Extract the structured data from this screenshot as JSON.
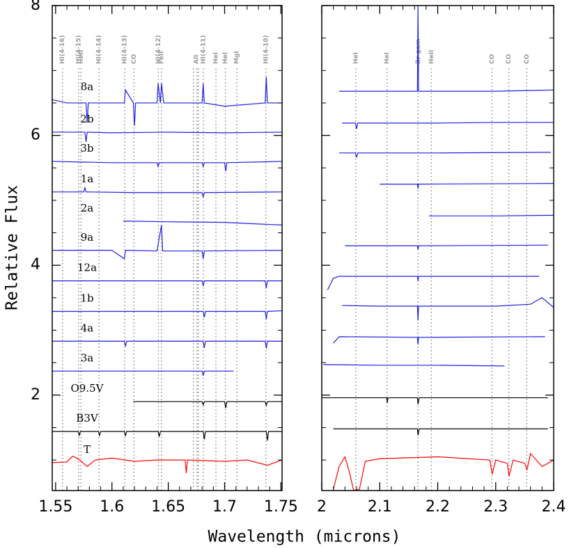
{
  "chart_data": [
    {
      "type": "line",
      "xlabel": "Wavelength (microns)",
      "ylabel": "Relative Flux",
      "xlim": [
        1.547,
        1.751
      ],
      "ylim": [
        0.53,
        8
      ],
      "xticks": [
        1.55,
        1.6,
        1.65,
        1.7,
        1.75
      ],
      "xminorticks": [
        1.56,
        1.57,
        1.58,
        1.59,
        1.61,
        1.62,
        1.63,
        1.64,
        1.66,
        1.67,
        1.68,
        1.69,
        1.71,
        1.72,
        1.73,
        1.74
      ],
      "yticks": [
        2,
        4,
        6,
        8
      ],
      "ytick_labels": true,
      "yminorticks": [
        1,
        1.5,
        2.5,
        3,
        3.5,
        4.5,
        5,
        5.5,
        6.5,
        7,
        7.5
      ],
      "annotations": [
        {
          "label": "HI(4-16)",
          "x": [
            1.5561
          ]
        },
        {
          "label": "HI(4-15)",
          "x": [
            1.5705
          ]
        },
        {
          "label": "HeII",
          "x": [
            1.5725
          ]
        },
        {
          "label": "HI(4-14)",
          "x": [
            1.5885
          ]
        },
        {
          "label": "HI(4-13)",
          "x": [
            1.6114
          ]
        },
        {
          "label": "CO",
          "x": [
            1.6195
          ]
        },
        {
          "label": "HI(4-12)",
          "x": [
            1.6412
          ]
        },
        {
          "label": "FeII",
          "x": [
            1.644
          ]
        },
        {
          "label": "AlI",
          "x": [
            1.6723,
            1.6755,
            1.6768
          ]
        },
        {
          "label": "HI(4-11)",
          "x": [
            1.6811
          ]
        },
        {
          "label": "HeI",
          "x": [
            1.6923
          ]
        },
        {
          "label": "HeI",
          "x": [
            1.7007
          ]
        },
        {
          "label": "MgI",
          "x": [
            1.7109
          ]
        },
        {
          "label": "HI(4-10)",
          "x": [
            1.7367
          ]
        }
      ],
      "series": [
        {
          "name": "8a",
          "color": "#1f1fe6",
          "x": [
            1.547,
            1.56,
            1.577,
            1.578,
            1.579,
            1.6,
            1.611,
            1.612,
            1.619,
            1.62,
            1.621,
            1.64,
            1.641,
            1.643,
            1.644,
            1.646,
            1.68,
            1.681,
            1.682,
            1.7,
            1.736,
            1.737,
            1.738,
            1.751
          ],
          "values": [
            6.55,
            6.5,
            6.5,
            6.2,
            6.5,
            6.5,
            6.5,
            6.7,
            6.5,
            6.15,
            6.5,
            6.5,
            6.8,
            6.5,
            6.8,
            6.5,
            6.5,
            6.8,
            6.5,
            6.45,
            6.5,
            6.9,
            6.5,
            6.5
          ]
        },
        {
          "name": "2b",
          "color": "#1f1fe6",
          "x": [
            1.547,
            1.576,
            1.577,
            1.578,
            1.6,
            1.65,
            1.7,
            1.751
          ],
          "values": [
            6.05,
            6.05,
            5.9,
            6.05,
            6.04,
            6.05,
            6.04,
            6.05
          ]
        },
        {
          "name": "3b",
          "color": "#1f1fe6",
          "x": [
            1.547,
            1.6,
            1.64,
            1.641,
            1.642,
            1.68,
            1.681,
            1.682,
            1.7,
            1.701,
            1.702,
            1.751
          ],
          "values": [
            5.6,
            5.58,
            5.58,
            5.52,
            5.58,
            5.58,
            5.52,
            5.58,
            5.58,
            5.45,
            5.58,
            5.6
          ]
        },
        {
          "name": "1a",
          "color": "#1f1fe6",
          "x": [
            1.547,
            1.575,
            1.576,
            1.577,
            1.62,
            1.68,
            1.681,
            1.682,
            1.751
          ],
          "values": [
            5.13,
            5.13,
            5.2,
            5.13,
            5.12,
            5.12,
            5.05,
            5.12,
            5.13
          ]
        },
        {
          "name": "2a",
          "color": "#1f1fe6",
          "x": [
            1.61,
            1.65,
            1.7,
            1.751
          ],
          "values": [
            4.68,
            4.67,
            4.66,
            4.62
          ]
        },
        {
          "name": "9a",
          "color": "#1f1fe6",
          "x": [
            1.547,
            1.6,
            1.611,
            1.612,
            1.64,
            1.644,
            1.645,
            1.646,
            1.68,
            1.681,
            1.682,
            1.751
          ],
          "values": [
            4.23,
            4.23,
            4.1,
            4.23,
            4.22,
            4.62,
            4.22,
            4.22,
            4.22,
            4.1,
            4.22,
            4.23
          ]
        },
        {
          "name": "12a",
          "color": "#1f1fe6",
          "x": [
            1.547,
            1.6,
            1.68,
            1.681,
            1.682,
            1.736,
            1.737,
            1.738,
            1.751
          ],
          "values": [
            3.76,
            3.76,
            3.76,
            3.68,
            3.76,
            3.76,
            3.65,
            3.76,
            3.76
          ]
        },
        {
          "name": "1b",
          "color": "#1f1fe6",
          "x": [
            1.547,
            1.6,
            1.681,
            1.682,
            1.683,
            1.736,
            1.737,
            1.738,
            1.751
          ],
          "values": [
            3.29,
            3.29,
            3.29,
            3.2,
            3.29,
            3.29,
            3.17,
            3.29,
            3.3
          ]
        },
        {
          "name": "4a",
          "color": "#1f1fe6",
          "x": [
            1.547,
            1.6,
            1.611,
            1.612,
            1.613,
            1.681,
            1.682,
            1.683,
            1.736,
            1.737,
            1.738,
            1.751
          ],
          "values": [
            2.83,
            2.83,
            2.83,
            2.75,
            2.83,
            2.83,
            2.73,
            2.83,
            2.83,
            2.72,
            2.83,
            2.83
          ]
        },
        {
          "name": "3a",
          "color": "#1f1fe6",
          "x": [
            1.547,
            1.6,
            1.68,
            1.681,
            1.682,
            1.708
          ],
          "values": [
            2.37,
            2.37,
            2.37,
            2.3,
            2.37,
            2.37
          ]
        },
        {
          "name": "O9.5V",
          "color": "#000000",
          "x": [
            1.619,
            1.68,
            1.681,
            1.682,
            1.7,
            1.701,
            1.702,
            1.736,
            1.737,
            1.738,
            1.751
          ],
          "values": [
            1.9,
            1.9,
            1.85,
            1.9,
            1.9,
            1.8,
            1.9,
            1.9,
            1.84,
            1.9,
            1.9
          ]
        },
        {
          "name": "B3V",
          "color": "#000000",
          "x": [
            1.547,
            1.57,
            1.571,
            1.572,
            1.588,
            1.589,
            1.59,
            1.611,
            1.612,
            1.613,
            1.641,
            1.642,
            1.643,
            1.681,
            1.682,
            1.683,
            1.737,
            1.738,
            1.739,
            1.751
          ],
          "values": [
            1.44,
            1.44,
            1.38,
            1.44,
            1.44,
            1.38,
            1.44,
            1.44,
            1.37,
            1.44,
            1.44,
            1.36,
            1.44,
            1.44,
            1.32,
            1.44,
            1.44,
            1.3,
            1.44,
            1.44
          ]
        },
        {
          "name": "T",
          "color": "#ff0000",
          "x": [
            1.547,
            1.56,
            1.565,
            1.57,
            1.578,
            1.585,
            1.6,
            1.62,
            1.64,
            1.665,
            1.666,
            1.667,
            1.7,
            1.72,
            1.738,
            1.751
          ],
          "values": [
            0.96,
            0.97,
            1.06,
            1.02,
            0.9,
            1.0,
            1.03,
            0.98,
            1.0,
            1.0,
            0.8,
            1.0,
            0.98,
            1.0,
            0.92,
            1.0
          ]
        }
      ]
    },
    {
      "type": "line",
      "xlim": [
        2,
        2.4
      ],
      "ylim": [
        0.53,
        8
      ],
      "xticks": [
        2,
        2.1,
        2.2,
        2.3,
        2.4
      ],
      "xminorticks": [
        2.02,
        2.04,
        2.06,
        2.08,
        2.12,
        2.14,
        2.16,
        2.18,
        2.22,
        2.24,
        2.26,
        2.28,
        2.32,
        2.34,
        2.36,
        2.38
      ],
      "yticks": [
        2,
        4,
        6,
        8
      ],
      "ytick_labels": false,
      "yminorticks": [
        1,
        1.5,
        2.5,
        3,
        3.5,
        4.5,
        5,
        5.5,
        6.5,
        7,
        7.5
      ],
      "annotations": [
        {
          "label": "HeI",
          "x": [
            2.0587
          ]
        },
        {
          "label": "HeI",
          "x": [
            2.1126
          ]
        },
        {
          "label": "Br gam",
          "x": [
            2.1661
          ]
        },
        {
          "label": "HeII",
          "x": [
            2.1891
          ]
        },
        {
          "label": "CO",
          "x": [
            2.2935
          ]
        },
        {
          "label": "CO",
          "x": [
            2.3227
          ]
        },
        {
          "label": "CO",
          "x": [
            2.3535
          ]
        }
      ],
      "series": [
        {
          "color": "#1f1fe6",
          "x": [
            2.03,
            2.1,
            2.165,
            2.166,
            2.167,
            2.2,
            2.3,
            2.4
          ],
          "values": [
            6.68,
            6.68,
            6.68,
            8.0,
            6.68,
            6.68,
            6.68,
            6.7
          ]
        },
        {
          "color": "#1f1fe6",
          "x": [
            2.035,
            2.058,
            2.06,
            2.062,
            2.1,
            2.2,
            2.3,
            2.4
          ],
          "values": [
            6.19,
            6.19,
            6.1,
            6.19,
            6.19,
            6.19,
            6.2,
            6.2
          ]
        },
        {
          "color": "#1f1fe6",
          "x": [
            2.03,
            2.058,
            2.06,
            2.062,
            2.2,
            2.395
          ],
          "values": [
            5.73,
            5.73,
            5.66,
            5.73,
            5.73,
            5.74
          ]
        },
        {
          "color": "#1f1fe6",
          "x": [
            2.1,
            2.165,
            2.166,
            2.167,
            2.4
          ],
          "values": [
            5.25,
            5.25,
            5.18,
            5.25,
            5.26
          ]
        },
        {
          "color": "#1f1fe6",
          "x": [
            2.185,
            2.3,
            2.4
          ],
          "values": [
            4.76,
            4.76,
            4.77
          ]
        },
        {
          "color": "#1f1fe6",
          "x": [
            2.04,
            2.165,
            2.166,
            2.167,
            2.39
          ],
          "values": [
            4.3,
            4.3,
            4.24,
            4.3,
            4.31
          ]
        },
        {
          "color": "#1f1fe6",
          "x": [
            2.01,
            2.02,
            2.03,
            2.165,
            2.166,
            2.167,
            2.375
          ],
          "values": [
            3.62,
            3.8,
            3.83,
            3.83,
            3.76,
            3.83,
            3.83
          ]
        },
        {
          "color": "#1f1fe6",
          "x": [
            2.035,
            2.1,
            2.165,
            2.166,
            2.167,
            2.3,
            2.36,
            2.38,
            2.4
          ],
          "values": [
            3.38,
            3.37,
            3.37,
            3.15,
            3.37,
            3.37,
            3.4,
            3.5,
            3.35
          ]
        },
        {
          "color": "#1f1fe6",
          "x": [
            2.02,
            2.03,
            2.165,
            2.166,
            2.167,
            2.385
          ],
          "values": [
            2.8,
            2.9,
            2.89,
            2.78,
            2.89,
            2.9
          ]
        },
        {
          "color": "#1f1fe6",
          "x": [
            2.003,
            2.1,
            2.2,
            2.315
          ],
          "values": [
            2.47,
            2.46,
            2.46,
            2.45
          ]
        },
        {
          "color": "#000000",
          "x": [
            2.0,
            2.112,
            2.113,
            2.114,
            2.165,
            2.166,
            2.168,
            2.39
          ],
          "values": [
            1.96,
            1.96,
            1.88,
            1.96,
            1.96,
            1.86,
            1.96,
            1.96
          ]
        },
        {
          "color": "#000000",
          "x": [
            2.02,
            2.165,
            2.166,
            2.168,
            2.39
          ],
          "values": [
            1.48,
            1.48,
            1.38,
            1.48,
            1.48
          ]
        },
        {
          "color": "#ff0000",
          "x": [
            2.02,
            2.03,
            2.04,
            2.048,
            2.055,
            2.065,
            2.075,
            2.1,
            2.2,
            2.29,
            2.294,
            2.3,
            2.32,
            2.323,
            2.33,
            2.35,
            2.354,
            2.36,
            2.38,
            2.4
          ],
          "values": [
            0.55,
            0.9,
            1.05,
            0.8,
            0.53,
            0.55,
            0.98,
            1.02,
            1.05,
            1.0,
            0.78,
            1.0,
            0.95,
            0.75,
            1.0,
            0.95,
            0.85,
            1.1,
            0.9,
            1.0
          ]
        }
      ]
    }
  ]
}
